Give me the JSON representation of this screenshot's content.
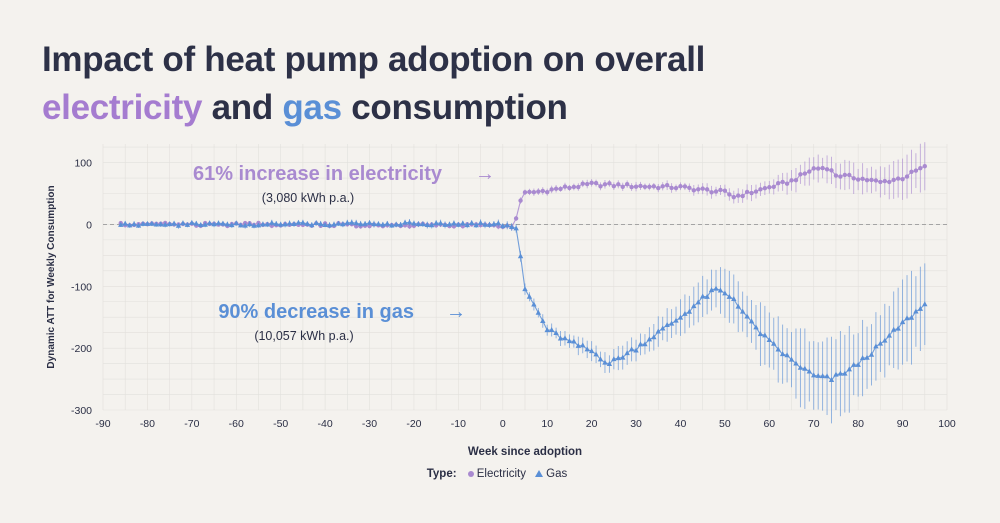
{
  "title": {
    "line1": "Impact of heat pump adoption on overall",
    "word_electricity": "electricity",
    "word_and": "and",
    "word_gas": "gas",
    "word_consumption": "consumption"
  },
  "colors": {
    "electricity": "#a98ad0",
    "gas": "#5a8fd6",
    "text": "#2d3147",
    "grid": "#e2e0dc"
  },
  "legend": {
    "label": "Type:",
    "electricity": "Electricity",
    "gas": "Gas"
  },
  "chart_data": {
    "type": "scatter",
    "xlabel": "Week since adoption",
    "ylabel": "Dynamic ATT for Weekly Consumption",
    "xlim": [
      -90,
      100
    ],
    "ylim": [
      -300,
      130
    ],
    "xticks": [
      -90,
      -80,
      -70,
      -60,
      -50,
      -40,
      -30,
      -20,
      -10,
      0,
      10,
      20,
      30,
      40,
      50,
      60,
      70,
      80,
      90,
      100
    ],
    "yticks": [
      100,
      0,
      -100,
      -200,
      -300
    ],
    "reference_line_y": 0,
    "error_bars": true,
    "annotations": [
      {
        "text": "61% increase in electricity",
        "sub": "(3,080 kWh p.a.)",
        "series": "Electricity",
        "arrow": "→"
      },
      {
        "text": "90% decrease in gas",
        "sub": "(10,057 kWh p.a.)",
        "series": "Gas",
        "arrow": "→"
      }
    ],
    "series": [
      {
        "name": "Electricity",
        "marker": "circle",
        "keypoints": [
          [
            -86,
            0
          ],
          [
            -48,
            0
          ],
          [
            0,
            -2
          ],
          [
            2,
            -5
          ],
          [
            3,
            10
          ],
          [
            4,
            40
          ],
          [
            5,
            50
          ],
          [
            10,
            55
          ],
          [
            20,
            65
          ],
          [
            30,
            62
          ],
          [
            40,
            60
          ],
          [
            50,
            52
          ],
          [
            52,
            45
          ],
          [
            55,
            50
          ],
          [
            60,
            60
          ],
          [
            65,
            70
          ],
          [
            70,
            90
          ],
          [
            73,
            92
          ],
          [
            75,
            80
          ],
          [
            80,
            75
          ],
          [
            85,
            68
          ],
          [
            90,
            75
          ],
          [
            94,
            90
          ],
          [
            95,
            92
          ]
        ],
        "error_keypoints": [
          [
            -86,
            3
          ],
          [
            0,
            4
          ],
          [
            4,
            5
          ],
          [
            40,
            7
          ],
          [
            60,
            12
          ],
          [
            70,
            20
          ],
          [
            85,
            22
          ],
          [
            95,
            35
          ]
        ]
      },
      {
        "name": "Gas",
        "marker": "triangle",
        "keypoints": [
          [
            -86,
            0
          ],
          [
            0,
            1
          ],
          [
            1,
            2
          ],
          [
            2,
            -3
          ],
          [
            3,
            -5
          ],
          [
            4,
            -55
          ],
          [
            5,
            -105
          ],
          [
            7,
            -130
          ],
          [
            10,
            -170
          ],
          [
            15,
            -190
          ],
          [
            20,
            -205
          ],
          [
            24,
            -225
          ],
          [
            30,
            -200
          ],
          [
            35,
            -175
          ],
          [
            40,
            -150
          ],
          [
            45,
            -120
          ],
          [
            48,
            -105
          ],
          [
            52,
            -120
          ],
          [
            56,
            -160
          ],
          [
            60,
            -190
          ],
          [
            65,
            -220
          ],
          [
            70,
            -245
          ],
          [
            74,
            -250
          ],
          [
            78,
            -235
          ],
          [
            80,
            -225
          ],
          [
            85,
            -195
          ],
          [
            90,
            -160
          ],
          [
            95,
            -130
          ]
        ],
        "error_keypoints": [
          [
            -86,
            4
          ],
          [
            0,
            5
          ],
          [
            5,
            8
          ],
          [
            10,
            10
          ],
          [
            24,
            15
          ],
          [
            40,
            25
          ],
          [
            48,
            35
          ],
          [
            60,
            45
          ],
          [
            70,
            60
          ],
          [
            78,
            60
          ],
          [
            85,
            50
          ],
          [
            95,
            75
          ]
        ]
      }
    ]
  }
}
